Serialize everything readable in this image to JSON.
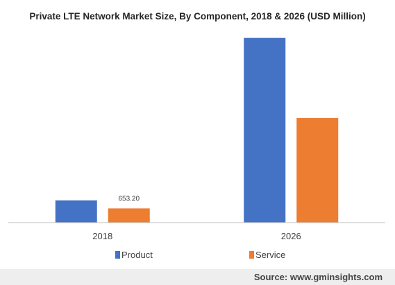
{
  "chart_data": {
    "type": "bar",
    "title": "Private LTE Network Market Size, By Component, 2018 & 2026 (USD Million)",
    "categories": [
      "2018",
      "2026"
    ],
    "series": [
      {
        "name": "Product",
        "color": "#4472c4",
        "values": [
          1015,
          8470
        ]
      },
      {
        "name": "Service",
        "color": "#ed7d31",
        "values": [
          653.2,
          4800
        ]
      }
    ],
    "data_labels": [
      {
        "series": "Service",
        "category": "2018",
        "text": "653.20"
      }
    ],
    "xlabel": "",
    "ylabel": "",
    "ylim": [
      0,
      9000
    ],
    "grid": false,
    "legend_position": "bottom"
  },
  "source": "Source: www.gminsights.com"
}
